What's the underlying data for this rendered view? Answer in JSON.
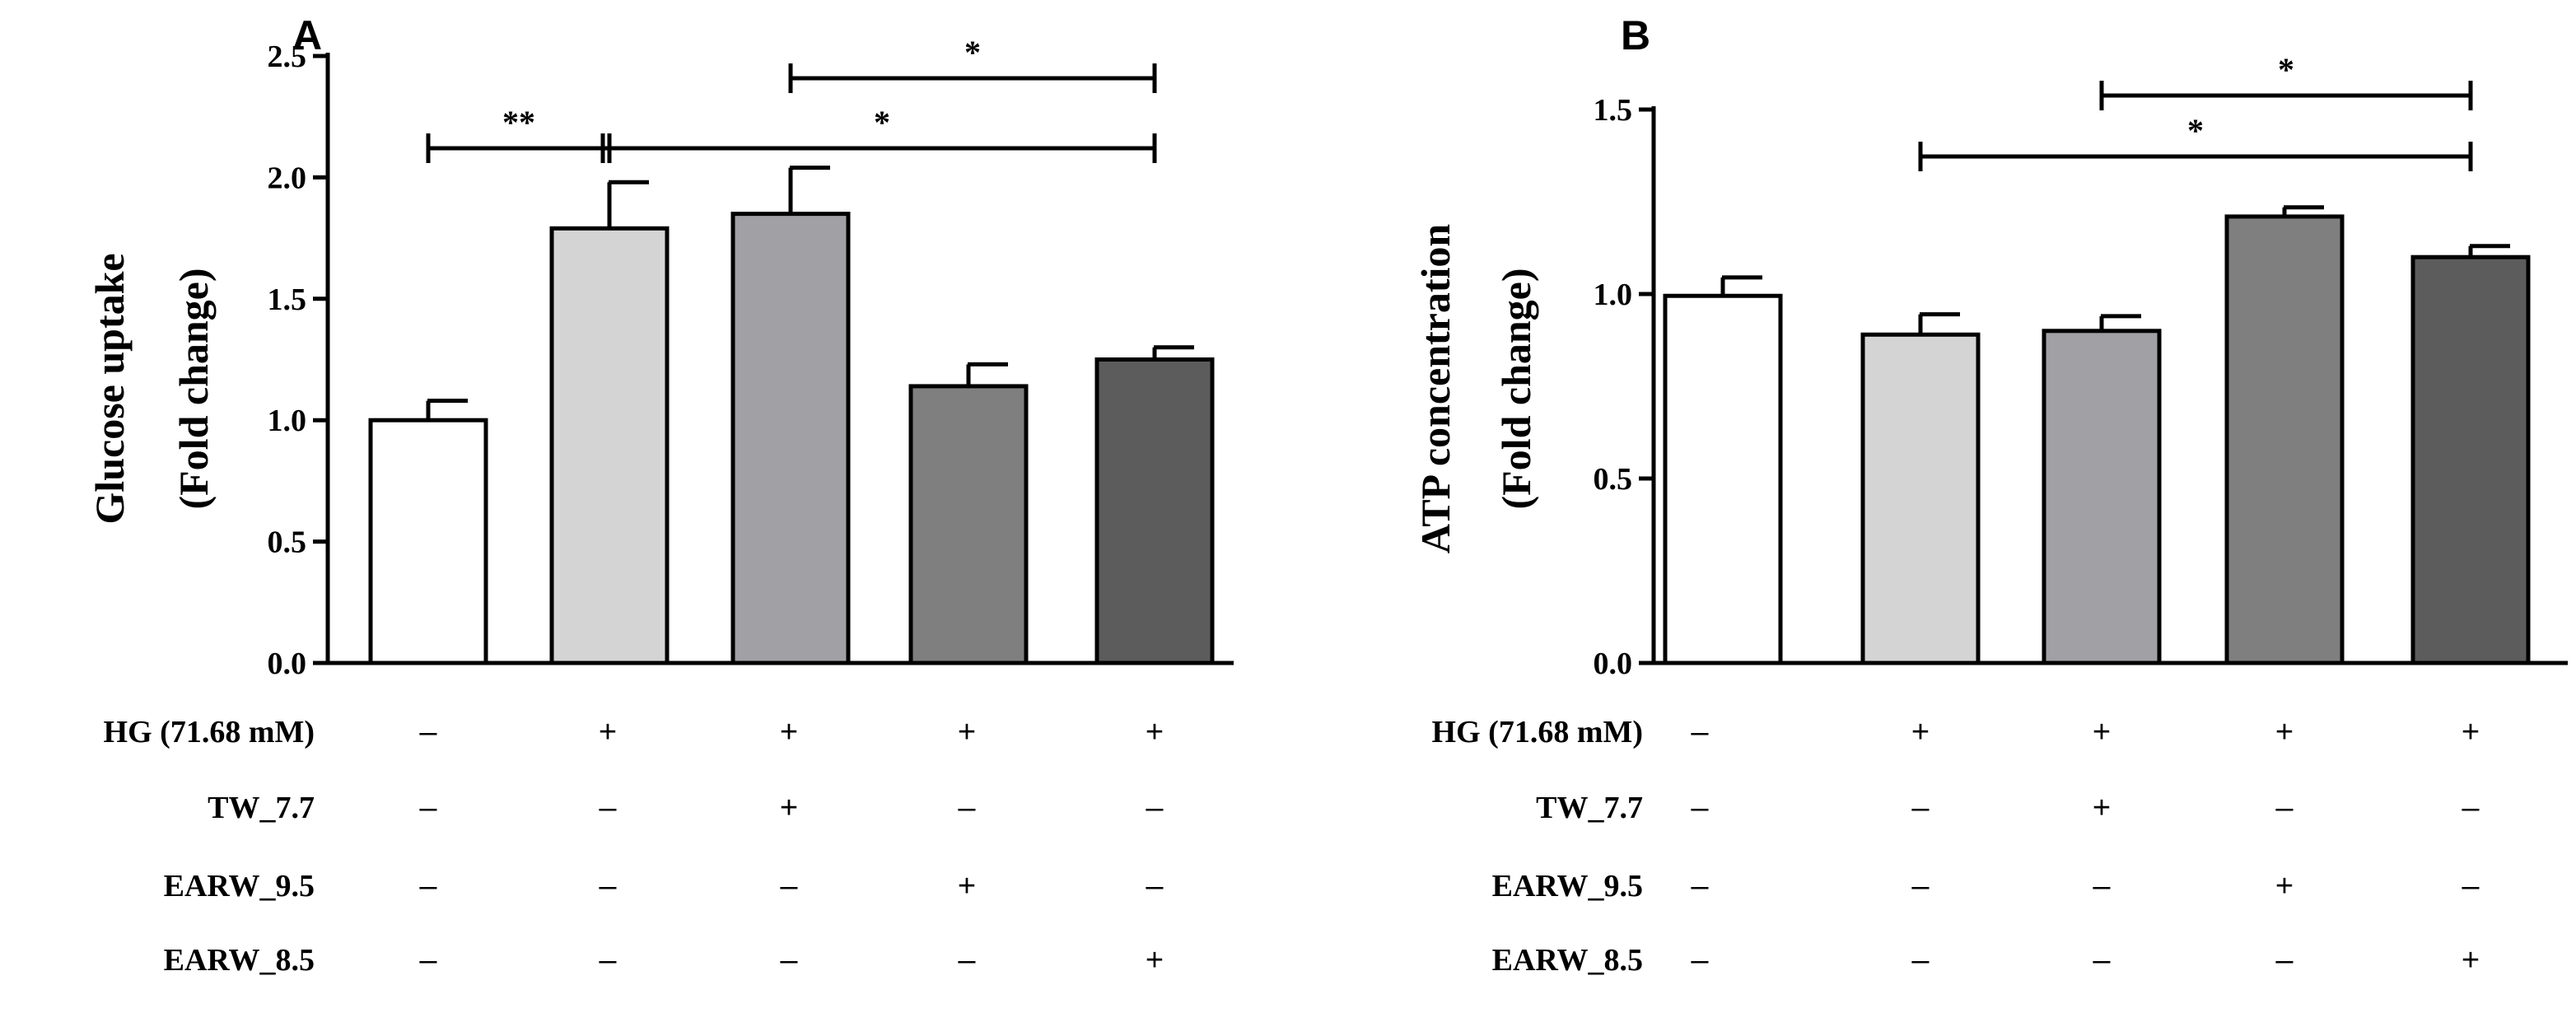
{
  "chart_data": [
    {
      "type": "bar",
      "panel": "A",
      "ylabel": [
        "Glucose uptake",
        "(Fold change)"
      ],
      "ylim": [
        0,
        2.5
      ],
      "yticks": [
        "0.0",
        "0.5",
        "1.0",
        "1.5",
        "2.0",
        "2.5"
      ],
      "ytick_values": [
        0,
        0.5,
        1.0,
        1.5,
        2.0,
        2.5
      ],
      "values": [
        1.0,
        1.79,
        1.85,
        1.14,
        1.25
      ],
      "errors": [
        0.08,
        0.19,
        0.19,
        0.09,
        0.05
      ],
      "colors": [
        "#ffffff",
        "#d4d4d4",
        "#a1a1a5",
        "#7f7f7f",
        "#5c5c5c"
      ],
      "significance": [
        {
          "from": 0,
          "to": 1,
          "level": 92,
          "label": "**",
          "ends": true
        },
        {
          "from": 1,
          "to": 4,
          "level": 92,
          "label": "*",
          "ends": true
        },
        {
          "from": 2,
          "to": 4,
          "level": 49,
          "label": "*",
          "ends": true
        }
      ]
    },
    {
      "type": "bar",
      "panel": "B",
      "ylabel": [
        "ATP concentration",
        "(Fold change)"
      ],
      "ylim": [
        0,
        1.5
      ],
      "yticks": [
        "0.0",
        "0.5",
        "1.0",
        "1.5"
      ],
      "ytick_values": [
        0,
        0.5,
        1.0,
        1.5
      ],
      "values": [
        0.995,
        0.89,
        0.9,
        1.21,
        1.1
      ],
      "errors": [
        0.05,
        0.055,
        0.04,
        0.025,
        0.03
      ],
      "colors": [
        "#ffffff",
        "#d4d4d4",
        "#a1a1a5",
        "#7f7f7f",
        "#5c5c5c"
      ],
      "significance": [
        {
          "from": 2,
          "to": 4,
          "level": 58,
          "label": "*",
          "ends": true
        },
        {
          "from": 1,
          "to": 4,
          "level": 95,
          "label": "*",
          "ends": true
        }
      ]
    }
  ],
  "treatments": [
    {
      "label": "HG (71.68 mM)",
      "signs": [
        "–",
        "+",
        "+",
        "+",
        "+"
      ]
    },
    {
      "label": "TW_7.7",
      "signs": [
        "–",
        "–",
        "+",
        "–",
        "–"
      ]
    },
    {
      "label": "EARW_9.5",
      "signs": [
        "–",
        "–",
        "–",
        "+",
        "–"
      ]
    },
    {
      "label": "EARW_8.5",
      "signs": [
        "–",
        "–",
        "–",
        "–",
        "+"
      ]
    }
  ]
}
